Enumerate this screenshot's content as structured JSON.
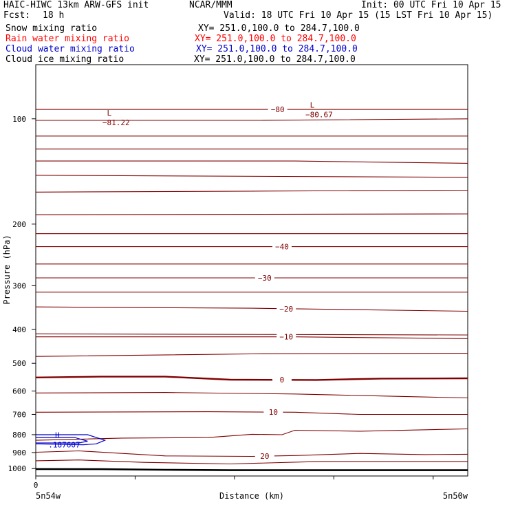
{
  "header": {
    "model": "HAIC-HIWC 13km ARW-GFS init",
    "center": "NCAR/MMM",
    "init": "Init: 00 UTC Fri 10 Apr 15",
    "fcst_label": "Fcst:",
    "fcst_value": "18 h",
    "valid": "Valid: 18 UTC Fri 10 Apr 15 (15 LST Fri 10 Apr 15)"
  },
  "fields": [
    {
      "name": "Snow mixing ratio",
      "xy": "XY= 251.0,100.0 to 284.7,100.0",
      "color": "#000000"
    },
    {
      "name": "Rain water mixing ratio",
      "xy": "XY= 251.0,100.0 to 284.7,100.0",
      "color": "#ff0000"
    },
    {
      "name": "Cloud water mixing ratio",
      "xy": "XY= 251.0,100.0 to 284.7,100.0",
      "color": "#0000cc"
    },
    {
      "name": "Cloud ice mixing ratio",
      "xy": "XY= 251.0,100.0 to 284.7,100.0",
      "color": "#000000"
    }
  ],
  "chart_data": {
    "type": "line",
    "xlabel": "Distance (km)",
    "ylabel": "Pressure (hPa)",
    "y_scale": "log",
    "ylim": [
      1050,
      70
    ],
    "yticks": [
      100,
      200,
      300,
      400,
      500,
      600,
      700,
      800,
      900,
      1000
    ],
    "xlim": [
      0,
      100
    ],
    "x_start_label": "0",
    "x_left_label": "5n54w",
    "x_right_label": "5n50w",
    "colors": {
      "temperature": "#800000",
      "ground": "#000000",
      "cloud_water": "#0000cc"
    },
    "isotherms": [
      {
        "label": "-80",
        "label_x": 56,
        "points": [
          [
            0,
            94
          ],
          [
            100,
            94
          ]
        ]
      },
      {
        "label": "",
        "label_x": null,
        "points": [
          [
            0,
            101
          ],
          [
            50,
            101
          ],
          [
            100,
            100
          ]
        ]
      },
      {
        "label": "",
        "label_x": null,
        "points": [
          [
            0,
            112
          ],
          [
            100,
            112
          ]
        ]
      },
      {
        "label": "",
        "label_x": null,
        "points": [
          [
            0,
            122
          ],
          [
            100,
            122
          ]
        ]
      },
      {
        "label": "",
        "label_x": null,
        "points": [
          [
            0,
            132
          ],
          [
            60,
            132
          ],
          [
            100,
            134
          ]
        ]
      },
      {
        "label": "",
        "label_x": null,
        "points": [
          [
            0,
            145
          ],
          [
            100,
            147
          ]
        ]
      },
      {
        "label": "",
        "label_x": null,
        "points": [
          [
            0,
            162
          ],
          [
            50,
            161
          ],
          [
            100,
            160
          ]
        ]
      },
      {
        "label": "",
        "label_x": null,
        "points": [
          [
            0,
            188
          ],
          [
            100,
            187
          ]
        ]
      },
      {
        "label": "",
        "label_x": null,
        "points": [
          [
            0,
            213
          ],
          [
            100,
            213
          ]
        ]
      },
      {
        "label": "-40",
        "label_x": 57,
        "points": [
          [
            0,
            232
          ],
          [
            100,
            232
          ]
        ]
      },
      {
        "label": "",
        "label_x": null,
        "points": [
          [
            0,
            260
          ],
          [
            100,
            260
          ]
        ]
      },
      {
        "label": "-30",
        "label_x": 53,
        "points": [
          [
            0,
            285
          ],
          [
            100,
            285
          ]
        ]
      },
      {
        "label": "",
        "label_x": null,
        "points": [
          [
            0,
            313
          ],
          [
            100,
            313
          ]
        ]
      },
      {
        "label": "-20",
        "label_x": 58,
        "points": [
          [
            0,
            345
          ],
          [
            50,
            348
          ],
          [
            100,
            355
          ]
        ]
      },
      {
        "label": "",
        "label_x": null,
        "points": [
          [
            0,
            412
          ],
          [
            100,
            415
          ]
        ]
      },
      {
        "label": "-10",
        "label_x": 58,
        "points": [
          [
            0,
            420
          ],
          [
            60,
            420
          ],
          [
            100,
            425
          ]
        ]
      },
      {
        "label": "",
        "label_x": null,
        "points": [
          [
            0,
            478
          ],
          [
            50,
            470
          ],
          [
            100,
            468
          ]
        ]
      },
      {
        "label": "0",
        "label_x": 57,
        "points": [
          [
            0,
            549
          ],
          [
            15,
            546
          ],
          [
            30,
            546
          ],
          [
            45,
            557
          ],
          [
            65,
            558
          ],
          [
            80,
            553
          ],
          [
            100,
            552
          ]
        ]
      },
      {
        "label": "",
        "label_x": null,
        "points": [
          [
            0,
            608
          ],
          [
            30,
            606
          ],
          [
            60,
            612
          ],
          [
            80,
            620
          ],
          [
            100,
            628
          ]
        ]
      },
      {
        "label": "10",
        "label_x": 55,
        "points": [
          [
            0,
            690
          ],
          [
            40,
            688
          ],
          [
            60,
            690
          ],
          [
            75,
            700
          ],
          [
            100,
            700
          ]
        ]
      },
      {
        "label": "",
        "label_x": null,
        "points": [
          [
            0,
            830
          ],
          [
            20,
            818
          ],
          [
            40,
            815
          ],
          [
            50,
            798
          ],
          [
            57,
            800
          ],
          [
            60,
            777
          ],
          [
            75,
            782
          ],
          [
            100,
            770
          ]
        ]
      },
      {
        "label": "20",
        "label_x": 53,
        "points": [
          [
            0,
            898
          ],
          [
            10,
            890
          ],
          [
            20,
            905
          ],
          [
            30,
            920
          ],
          [
            50,
            923
          ],
          [
            60,
            918
          ],
          [
            75,
            905
          ],
          [
            90,
            912
          ],
          [
            100,
            910
          ]
        ]
      },
      {
        "label": "",
        "label_x": null,
        "points": [
          [
            0,
            950
          ],
          [
            10,
            945
          ],
          [
            25,
            960
          ],
          [
            45,
            970
          ],
          [
            65,
            955
          ],
          [
            100,
            955
          ]
        ]
      }
    ],
    "ground": [
      [
        0,
        1003
      ],
      [
        15,
        1004
      ],
      [
        30,
        1008
      ],
      [
        45,
        1011
      ],
      [
        60,
        1011
      ],
      [
        80,
        1011
      ],
      [
        100,
        1011
      ]
    ],
    "extrema": [
      {
        "type": "L",
        "value": "-81.22",
        "x": 17,
        "p": 100
      },
      {
        "type": "L",
        "value": "-80.67",
        "x": 64,
        "p": 95
      },
      {
        "type": "H",
        "value": ".187607",
        "x": 5,
        "p": 835
      }
    ],
    "cloud_water_contour": [
      [
        0,
        800
      ],
      [
        12,
        800
      ],
      [
        16,
        830
      ],
      [
        14,
        850
      ],
      [
        11,
        855
      ],
      [
        0,
        850
      ]
    ]
  }
}
